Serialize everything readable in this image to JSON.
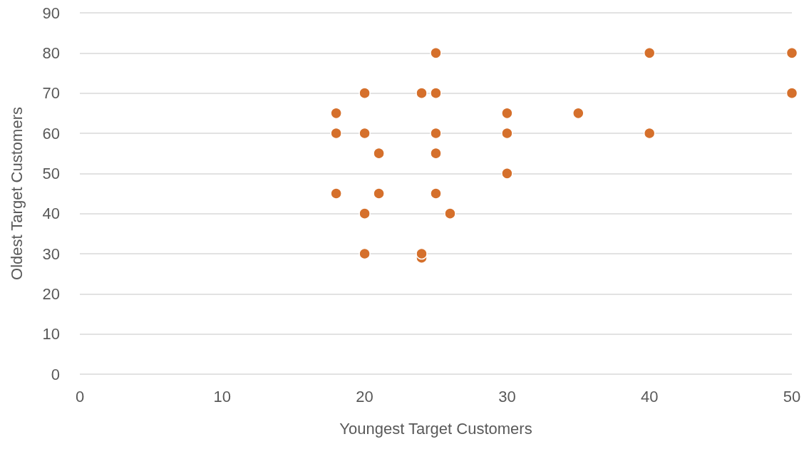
{
  "chart_data": {
    "type": "scatter",
    "xlabel": "Youngest Target Customers",
    "ylabel": "Oldest Target Customers",
    "x": [
      18,
      18,
      18,
      20,
      20,
      20,
      20,
      21,
      21,
      24,
      24,
      24,
      25,
      25,
      25,
      25,
      25,
      26,
      30,
      30,
      30,
      35,
      40,
      40,
      50,
      50
    ],
    "values": [
      65,
      60,
      45,
      70,
      60,
      40,
      30,
      55,
      45,
      70,
      29,
      30,
      80,
      70,
      60,
      55,
      45,
      40,
      65,
      60,
      50,
      65,
      80,
      60,
      80,
      70
    ],
    "color": "#d5702c",
    "marker": "circle",
    "xlim": [
      0,
      50
    ],
    "xticks": [
      0,
      10,
      20,
      30,
      40,
      50
    ],
    "ylim": [
      0,
      90
    ],
    "yticks": [
      0,
      10,
      20,
      30,
      40,
      50,
      60,
      70,
      80,
      90
    ],
    "grid": "y"
  }
}
